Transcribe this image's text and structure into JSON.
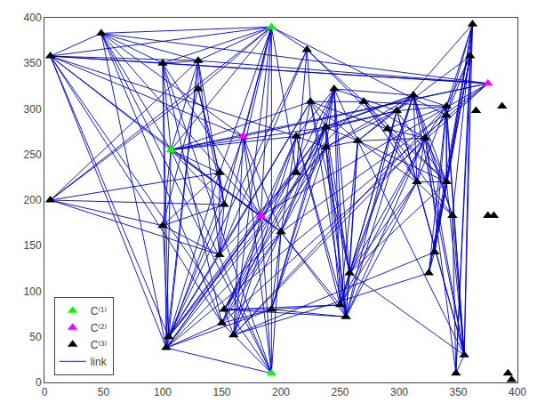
{
  "chart_data": {
    "type": "network",
    "series": [
      {
        "name": "C⁽¹⁾",
        "type": "node",
        "color": "#00FF00",
        "marker": "triangle-up",
        "points": [
          [
            192,
            390
          ],
          [
            107,
            255
          ],
          [
            192,
            10
          ]
        ]
      },
      {
        "name": "C⁽²⁾",
        "type": "node",
        "color": "#FF00FF",
        "marker": "triangle-up",
        "points": [
          [
            168,
            270
          ],
          [
            183,
            183
          ],
          [
            375,
            328
          ]
        ]
      },
      {
        "name": "C⁽³⁾",
        "type": "node",
        "color": "#000000",
        "marker": "triangle-up",
        "points": [
          [
            5,
            358
          ],
          [
            48,
            383
          ],
          [
            100,
            350
          ],
          [
            130,
            353
          ],
          [
            130,
            322
          ],
          [
            5,
            200
          ],
          [
            100,
            172
          ],
          [
            148,
            230
          ],
          [
            152,
            195
          ],
          [
            148,
            140
          ],
          [
            105,
            50
          ],
          [
            103,
            38
          ],
          [
            150,
            65
          ],
          [
            160,
            52
          ],
          [
            152,
            80
          ],
          [
            192,
            80
          ],
          [
            200,
            165
          ],
          [
            213,
            270
          ],
          [
            213,
            230
          ],
          [
            222,
            365
          ],
          [
            225,
            308
          ],
          [
            238,
            280
          ],
          [
            238,
            258
          ],
          [
            245,
            322
          ],
          [
            250,
            85
          ],
          [
            255,
            72
          ],
          [
            258,
            120
          ],
          [
            265,
            265
          ],
          [
            270,
            308
          ],
          [
            290,
            278
          ],
          [
            298,
            298
          ],
          [
            312,
            315
          ],
          [
            315,
            220
          ],
          [
            322,
            268
          ],
          [
            325,
            120
          ],
          [
            330,
            143
          ],
          [
            340,
            293
          ],
          [
            340,
            303
          ],
          [
            340,
            220
          ],
          [
            345,
            183
          ],
          [
            348,
            10
          ],
          [
            355,
            30
          ],
          [
            362,
            393
          ],
          [
            360,
            358
          ],
          [
            365,
            298
          ],
          [
            375,
            183
          ],
          [
            380,
            183
          ],
          [
            387,
            303
          ],
          [
            392,
            10
          ],
          [
            395,
            3
          ]
        ]
      },
      {
        "name": "link",
        "type": "edge",
        "color": "#0000CC",
        "line_style": "solid",
        "edges": [
          [
            0,
            6
          ],
          [
            0,
            7
          ],
          [
            0,
            8
          ],
          [
            0,
            9
          ],
          [
            0,
            10
          ],
          [
            0,
            11
          ],
          [
            0,
            13
          ],
          [
            0,
            14
          ],
          [
            0,
            15
          ],
          [
            0,
            24
          ],
          [
            0,
            25
          ],
          [
            1,
            2
          ],
          [
            1,
            3
          ],
          [
            1,
            4
          ],
          [
            1,
            12
          ],
          [
            1,
            13
          ],
          [
            1,
            14
          ],
          [
            1,
            17
          ],
          [
            1,
            22
          ],
          [
            1,
            23
          ],
          [
            1,
            26
          ],
          [
            1,
            27
          ],
          [
            2,
            3
          ],
          [
            2,
            4
          ],
          [
            2,
            6
          ],
          [
            2,
            7
          ],
          [
            2,
            8
          ],
          [
            2,
            17
          ],
          [
            2,
            22
          ],
          [
            3,
            4
          ],
          [
            3,
            6
          ],
          [
            3,
            7
          ],
          [
            3,
            17
          ],
          [
            3,
            22
          ],
          [
            4,
            7
          ],
          [
            4,
            8
          ],
          [
            4,
            17
          ],
          [
            4,
            22
          ],
          [
            4,
            23
          ],
          [
            5,
            6
          ],
          [
            5,
            7
          ],
          [
            5,
            8
          ],
          [
            5,
            17
          ],
          [
            5,
            22
          ],
          [
            6,
            7
          ],
          [
            6,
            8
          ],
          [
            6,
            9
          ],
          [
            6,
            17
          ],
          [
            6,
            22
          ],
          [
            6,
            23
          ],
          [
            7,
            8
          ],
          [
            7,
            9
          ],
          [
            7,
            17
          ],
          [
            7,
            18
          ],
          [
            8,
            9
          ],
          [
            8,
            16
          ],
          [
            8,
            17
          ],
          [
            8,
            18
          ],
          [
            9,
            10
          ],
          [
            9,
            11
          ],
          [
            9,
            14
          ],
          [
            9,
            15
          ],
          [
            10,
            11
          ],
          [
            10,
            12
          ],
          [
            10,
            13
          ],
          [
            10,
            14
          ],
          [
            11,
            12
          ],
          [
            11,
            13
          ],
          [
            11,
            14
          ],
          [
            11,
            15
          ],
          [
            12,
            13
          ],
          [
            12,
            14
          ],
          [
            12,
            15
          ],
          [
            12,
            16
          ],
          [
            13,
            14
          ],
          [
            13,
            15
          ],
          [
            13,
            16
          ],
          [
            14,
            15
          ],
          [
            14,
            16
          ],
          [
            15,
            16
          ],
          [
            15,
            24
          ],
          [
            15,
            25
          ],
          [
            15,
            26
          ],
          [
            16,
            17
          ],
          [
            16,
            24
          ],
          [
            16,
            25
          ],
          [
            16,
            26
          ],
          [
            17,
            18
          ],
          [
            17,
            21
          ],
          [
            17,
            22
          ],
          [
            17,
            27
          ],
          [
            17,
            28
          ],
          [
            18,
            19
          ],
          [
            18,
            21
          ],
          [
            18,
            22
          ],
          [
            18,
            23
          ],
          [
            19,
            20
          ],
          [
            19,
            22
          ],
          [
            19,
            23
          ],
          [
            19,
            40
          ],
          [
            19,
            41
          ],
          [
            19,
            43
          ],
          [
            20,
            21
          ],
          [
            20,
            22
          ],
          [
            20,
            27
          ],
          [
            20,
            28
          ],
          [
            20,
            30
          ],
          [
            21,
            22
          ],
          [
            21,
            27
          ],
          [
            21,
            28
          ],
          [
            21,
            29
          ],
          [
            22,
            23
          ],
          [
            22,
            27
          ],
          [
            22,
            29
          ],
          [
            22,
            30
          ],
          [
            23,
            28
          ],
          [
            23,
            29
          ],
          [
            23,
            30
          ],
          [
            23,
            31
          ],
          [
            24,
            25
          ],
          [
            24,
            26
          ],
          [
            24,
            34
          ],
          [
            25,
            26
          ],
          [
            25,
            34
          ],
          [
            25,
            35
          ],
          [
            26,
            34
          ],
          [
            26,
            35
          ],
          [
            26,
            32
          ],
          [
            26,
            33
          ],
          [
            27,
            28
          ],
          [
            27,
            29
          ],
          [
            27,
            32
          ],
          [
            27,
            33
          ],
          [
            28,
            29
          ],
          [
            28,
            30
          ],
          [
            28,
            31
          ],
          [
            28,
            32
          ],
          [
            28,
            33
          ],
          [
            29,
            30
          ],
          [
            29,
            31
          ],
          [
            29,
            36
          ],
          [
            29,
            37
          ],
          [
            30,
            31
          ],
          [
            30,
            36
          ],
          [
            30,
            37
          ],
          [
            30,
            38
          ],
          [
            31,
            36
          ],
          [
            31,
            37
          ],
          [
            31,
            38
          ],
          [
            31,
            39
          ],
          [
            32,
            33
          ],
          [
            32,
            38
          ],
          [
            32,
            39
          ],
          [
            33,
            36
          ],
          [
            33,
            37
          ],
          [
            33,
            38
          ],
          [
            33,
            44
          ],
          [
            33,
            47
          ],
          [
            34,
            35
          ],
          [
            34,
            38
          ],
          [
            34,
            39
          ],
          [
            35,
            38
          ],
          [
            35,
            39
          ],
          [
            35,
            45
          ],
          [
            36,
            37
          ],
          [
            36,
            38
          ],
          [
            36,
            43
          ],
          [
            36,
            44
          ],
          [
            36,
            47
          ],
          [
            37,
            38
          ],
          [
            37,
            39
          ],
          [
            37,
            44
          ],
          [
            37,
            47
          ],
          [
            38,
            39
          ],
          [
            38,
            44
          ],
          [
            38,
            47
          ],
          [
            39,
            45
          ],
          [
            39,
            46
          ],
          [
            39,
            47
          ],
          [
            40,
            41
          ],
          [
            40,
            48
          ],
          [
            40,
            49
          ],
          [
            41,
            48
          ],
          [
            41,
            49
          ],
          [
            42,
            43
          ],
          [
            42,
            44
          ],
          [
            42,
            47
          ],
          [
            42,
            48
          ],
          [
            43,
            44
          ],
          [
            43,
            47
          ],
          [
            43,
            48
          ],
          [
            43,
            49
          ],
          [
            44,
            47
          ],
          [
            44,
            48
          ],
          [
            44,
            49
          ],
          [
            45,
            46
          ],
          [
            45,
            47
          ],
          [
            45,
            48
          ],
          [
            46,
            47
          ],
          [
            46,
            48
          ],
          [
            46,
            49
          ],
          [
            47,
            48
          ],
          [
            47,
            49
          ],
          [
            48,
            49
          ],
          [
            0,
            1
          ],
          [
            0,
            2
          ],
          [
            0,
            3
          ],
          [
            0,
            4
          ],
          [
            0,
            19
          ],
          [
            0,
            42
          ],
          [
            1,
            5
          ],
          [
            1,
            6
          ],
          [
            1,
            7
          ],
          [
            1,
            8
          ],
          [
            1,
            9
          ],
          [
            2,
            19
          ],
          [
            3,
            19
          ],
          [
            4,
            19
          ],
          [
            19,
            42
          ],
          [
            3,
            5
          ],
          [
            4,
            5
          ],
          [
            5,
            9
          ],
          [
            5,
            18
          ],
          [
            6,
            18
          ],
          [
            6,
            16
          ],
          [
            9,
            17
          ],
          [
            9,
            16
          ],
          [
            16,
            27
          ],
          [
            16,
            28
          ],
          [
            18,
            27
          ],
          [
            20,
            31
          ],
          [
            20,
            29
          ],
          [
            21,
            31
          ],
          [
            21,
            30
          ],
          [
            22,
            31
          ],
          [
            22,
            28
          ],
          [
            23,
            36
          ],
          [
            23,
            37
          ],
          [
            26,
            31
          ],
          [
            26,
            27
          ],
          [
            27,
            31
          ],
          [
            27,
            36
          ],
          [
            27,
            37
          ],
          [
            28,
            36
          ],
          [
            28,
            37
          ],
          [
            29,
            33
          ],
          [
            29,
            32
          ],
          [
            30,
            33
          ],
          [
            30,
            32
          ],
          [
            30,
            39
          ],
          [
            31,
            33
          ],
          [
            31,
            32
          ],
          [
            32,
            36
          ],
          [
            32,
            37
          ],
          [
            32,
            44
          ],
          [
            32,
            47
          ],
          [
            33,
            39
          ],
          [
            34,
            43
          ],
          [
            34,
            44
          ],
          [
            35,
            43
          ],
          [
            35,
            44
          ],
          [
            36,
            48
          ],
          [
            36,
            49
          ],
          [
            37,
            43
          ],
          [
            37,
            45
          ],
          [
            38,
            43
          ],
          [
            38,
            45
          ],
          [
            39,
            43
          ],
          [
            39,
            44
          ],
          [
            40,
            43
          ],
          [
            40,
            44
          ],
          [
            41,
            43
          ],
          [
            41,
            44
          ],
          [
            42,
            49
          ]
        ]
      }
    ],
    "xlim": [
      0,
      400
    ],
    "ylim": [
      0,
      400
    ],
    "xticks": [
      0,
      50,
      100,
      150,
      200,
      250,
      300,
      350,
      400
    ],
    "yticks": [
      0,
      50,
      100,
      150,
      200,
      250,
      300,
      350,
      400
    ],
    "grid": false,
    "legend": "lower left"
  }
}
